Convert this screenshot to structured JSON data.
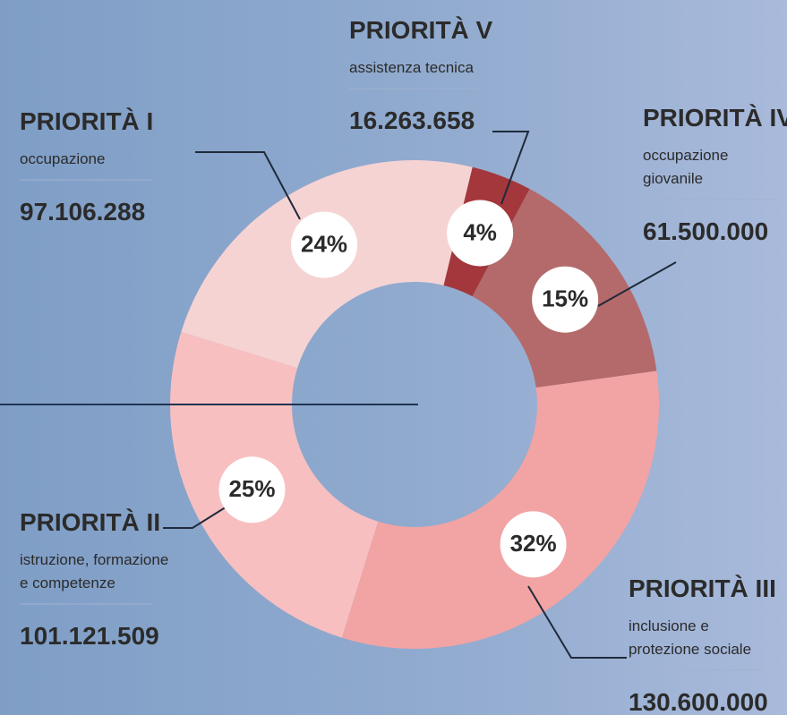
{
  "chart_data": {
    "type": "donut",
    "categories": [
      "PRIORITÀ V",
      "PRIORITÀ IV",
      "PRIORITÀ III",
      "PRIORITÀ II",
      "PRIORITÀ I"
    ],
    "descriptions": [
      [
        "assistenza tecnica"
      ],
      [
        "occupazione",
        "giovanile"
      ],
      [
        "inclusione e",
        "protezione sociale"
      ],
      [
        "istruzione, formazione",
        "e competenze"
      ],
      [
        "occupazione"
      ]
    ],
    "values": [
      4,
      15,
      32,
      25,
      24
    ],
    "value_labels": [
      "4%",
      "15%",
      "32%",
      "25%",
      "24%"
    ],
    "amounts": [
      {
        "value": 16263658,
        "label": "16.263.658"
      },
      {
        "value": 61500000,
        "label": "61.500.000"
      },
      {
        "value": 130600000,
        "label": "130.600.000"
      },
      {
        "value": 101121509,
        "label": "101.121.509"
      },
      {
        "value": 97106288,
        "label": "97.106.288"
      }
    ],
    "colors": [
      "#a3373b",
      "#b46a6a",
      "#f2a3a4",
      "#f8bfc0",
      "#f6d3d3"
    ]
  }
}
